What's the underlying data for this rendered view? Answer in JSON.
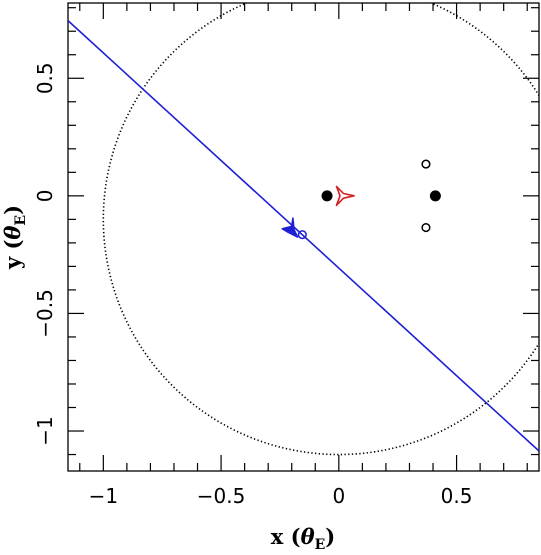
{
  "chart_data": {
    "type": "scatter",
    "title": "",
    "xlabel": {
      "prefix": "x (",
      "greek": "θ",
      "sub": "E",
      "suffix": ")"
    },
    "ylabel": {
      "prefix": "y (",
      "greek": "θ",
      "sub": "E",
      "suffix": ")"
    },
    "xlim": [
      -1.15,
      0.85
    ],
    "ylim": [
      -1.17,
      0.82
    ],
    "grid": false,
    "x_ticks": [
      -1,
      -0.5,
      0,
      0.5
    ],
    "x_tick_labels": [
      "−1",
      "−0.5",
      "0",
      "0.5"
    ],
    "y_ticks": [
      -1,
      -0.5,
      0,
      0.5
    ],
    "y_tick_labels": [
      "−1",
      "−0.5",
      "0",
      "0.5"
    ],
    "x_minor_step": 0.1,
    "y_minor_step": 0.1,
    "series": [
      {
        "kind": "filled-circles",
        "color": "#000000",
        "points": [
          {
            "x": -0.05,
            "y": 0.0
          },
          {
            "x": 0.41,
            "y": 0.0
          }
        ]
      },
      {
        "kind": "open-circles",
        "color": "#000000",
        "points": [
          {
            "x": 0.37,
            "y": 0.135
          },
          {
            "x": 0.37,
            "y": -0.135
          }
        ]
      },
      {
        "kind": "circle-curve",
        "style": "dotted",
        "color": "#000000",
        "center": {
          "x": 0.0,
          "y": -0.1
        },
        "radius": 1.0
      },
      {
        "kind": "line",
        "color": "#1f1fd6",
        "points": [
          {
            "x": -1.15,
            "y": 0.745
          },
          {
            "x": 0.85,
            "y": -1.085
          }
        ]
      },
      {
        "kind": "open-circles",
        "color": "#1f1fd6",
        "points": [
          {
            "x": -0.155,
            "y": -0.165
          }
        ]
      },
      {
        "kind": "caustic",
        "color": "#1f1fd6",
        "filled": true,
        "points": [
          {
            "x": -0.24,
            "y": -0.14
          },
          {
            "x": -0.22,
            "y": -0.152
          },
          {
            "x": -0.175,
            "y": -0.175
          },
          {
            "x": -0.19,
            "y": -0.145
          },
          {
            "x": -0.195,
            "y": -0.095
          },
          {
            "x": -0.2,
            "y": -0.13
          }
        ]
      },
      {
        "kind": "caustic",
        "color": "#d42020",
        "filled": false,
        "points": [
          {
            "x": -0.01,
            "y": 0.04
          },
          {
            "x": 0.02,
            "y": 0.01
          },
          {
            "x": 0.065,
            "y": 0.0
          },
          {
            "x": 0.02,
            "y": -0.01
          },
          {
            "x": -0.01,
            "y": -0.04
          },
          {
            "x": 0.005,
            "y": 0.0
          }
        ]
      }
    ]
  }
}
